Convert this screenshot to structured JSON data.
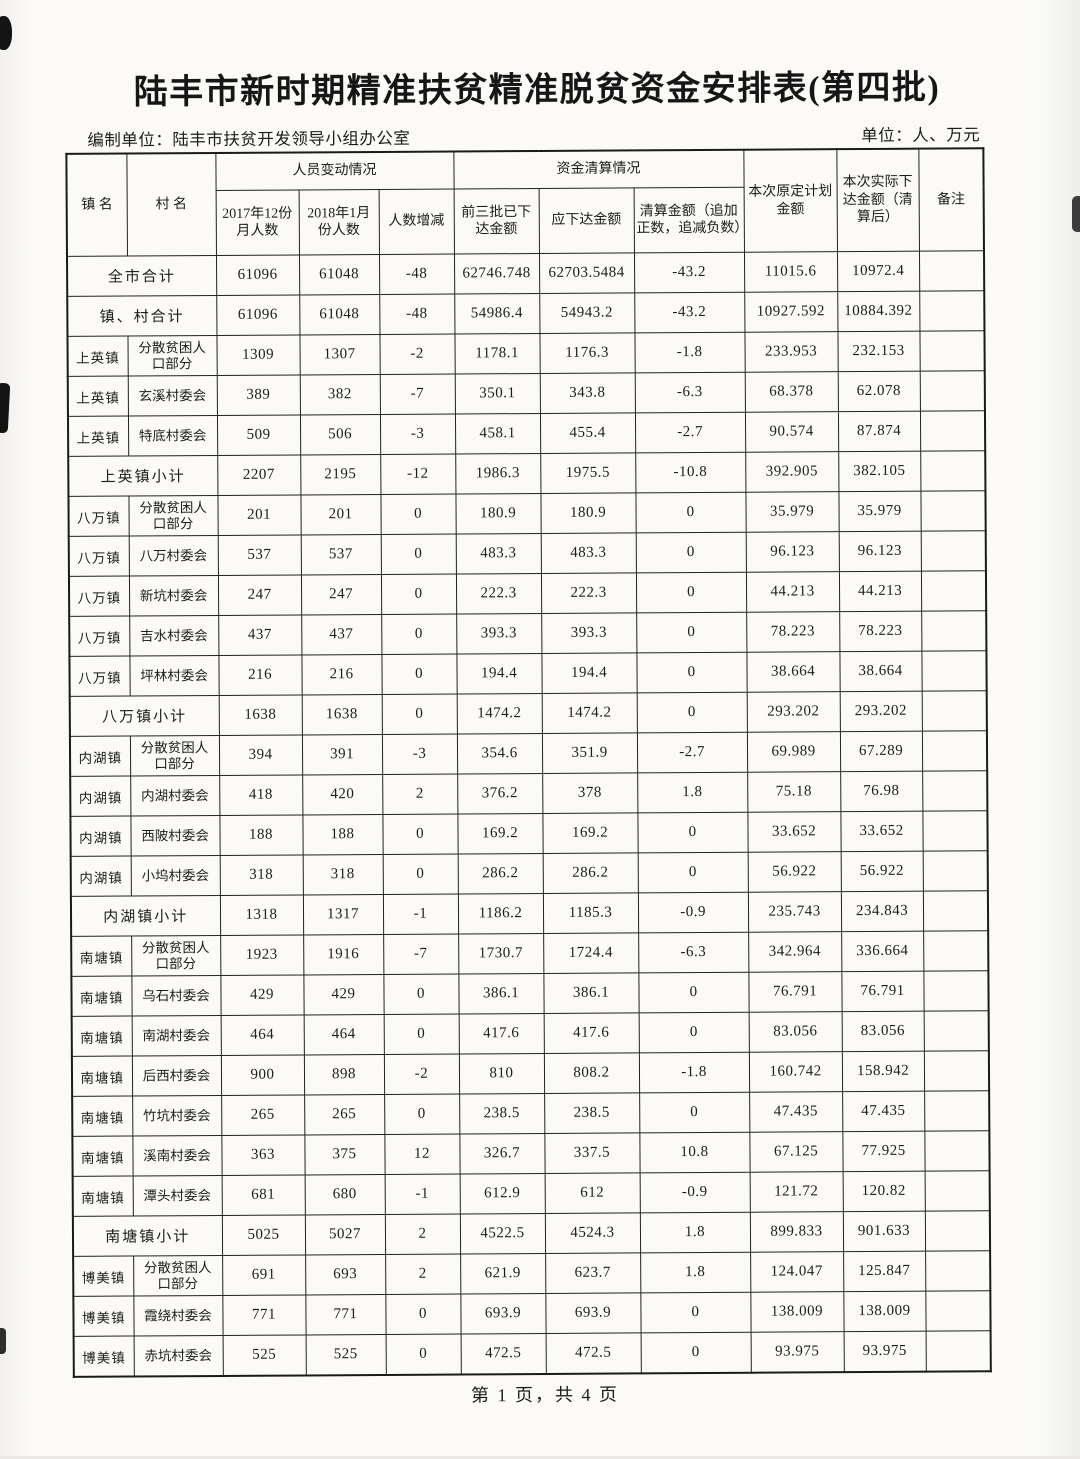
{
  "page": {
    "title": "陆丰市新时期精准扶贫精准脱贫资金安排表(第四批)",
    "prepared_by": "编制单位：陆丰市扶贫开发领导小组办公室",
    "unit_note": "单位：人、万元",
    "footer": "第 1 页，共 4 页"
  },
  "colors": {
    "ink": "#1c1c1c",
    "paper": "#fbfaf6"
  },
  "table": {
    "headers": {
      "town": "镇 名",
      "village": "村 名",
      "personnel_group": "人员变动情况",
      "funds_group": "资金清算情况",
      "col_2017": "2017年12份月人数",
      "col_2018": "2018年1月份人数",
      "col_change": "人数增减",
      "col_prev3": "前三批已下达金额",
      "col_due": "应下达金额",
      "col_settle": "清算金额（追加正数，追减负数）",
      "col_planned": "本次原定计划金额",
      "col_actual": "本次实际下达金额（清算后）",
      "col_remark": "备注"
    },
    "rows": [
      {
        "type": "total",
        "label": "全市合计",
        "values": [
          "61096",
          "61048",
          "-48",
          "62746.748",
          "62703.5484",
          "-43.2",
          "11015.6",
          "10972.4"
        ]
      },
      {
        "type": "total",
        "label": "镇、村合计",
        "values": [
          "61096",
          "61048",
          "-48",
          "54986.4",
          "54943.2",
          "-43.2",
          "10927.592",
          "10884.392"
        ]
      },
      {
        "type": "detail",
        "town": "上英镇",
        "village": "分散贫困人口部分",
        "values": [
          "1309",
          "1307",
          "-2",
          "1178.1",
          "1176.3",
          "-1.8",
          "233.953",
          "232.153"
        ]
      },
      {
        "type": "detail",
        "town": "上英镇",
        "village": "玄溪村委会",
        "values": [
          "389",
          "382",
          "-7",
          "350.1",
          "343.8",
          "-6.3",
          "68.378",
          "62.078"
        ]
      },
      {
        "type": "detail",
        "town": "上英镇",
        "village": "特底村委会",
        "values": [
          "509",
          "506",
          "-3",
          "458.1",
          "455.4",
          "-2.7",
          "90.574",
          "87.874"
        ]
      },
      {
        "type": "subtotal",
        "label": "上英镇小计",
        "values": [
          "2207",
          "2195",
          "-12",
          "1986.3",
          "1975.5",
          "-10.8",
          "392.905",
          "382.105"
        ]
      },
      {
        "type": "detail",
        "town": "八万镇",
        "village": "分散贫困人口部分",
        "values": [
          "201",
          "201",
          "0",
          "180.9",
          "180.9",
          "0",
          "35.979",
          "35.979"
        ]
      },
      {
        "type": "detail",
        "town": "八万镇",
        "village": "八万村委会",
        "values": [
          "537",
          "537",
          "0",
          "483.3",
          "483.3",
          "0",
          "96.123",
          "96.123"
        ]
      },
      {
        "type": "detail",
        "town": "八万镇",
        "village": "新坑村委会",
        "values": [
          "247",
          "247",
          "0",
          "222.3",
          "222.3",
          "0",
          "44.213",
          "44.213"
        ]
      },
      {
        "type": "detail",
        "town": "八万镇",
        "village": "吉水村委会",
        "values": [
          "437",
          "437",
          "0",
          "393.3",
          "393.3",
          "0",
          "78.223",
          "78.223"
        ]
      },
      {
        "type": "detail",
        "town": "八万镇",
        "village": "坪林村委会",
        "values": [
          "216",
          "216",
          "0",
          "194.4",
          "194.4",
          "0",
          "38.664",
          "38.664"
        ]
      },
      {
        "type": "subtotal",
        "label": "八万镇小计",
        "values": [
          "1638",
          "1638",
          "0",
          "1474.2",
          "1474.2",
          "0",
          "293.202",
          "293.202"
        ]
      },
      {
        "type": "detail",
        "town": "内湖镇",
        "village": "分散贫困人口部分",
        "values": [
          "394",
          "391",
          "-3",
          "354.6",
          "351.9",
          "-2.7",
          "69.989",
          "67.289"
        ]
      },
      {
        "type": "detail",
        "town": "内湖镇",
        "village": "内湖村委会",
        "values": [
          "418",
          "420",
          "2",
          "376.2",
          "378",
          "1.8",
          "75.18",
          "76.98"
        ]
      },
      {
        "type": "detail",
        "town": "内湖镇",
        "village": "西陂村委会",
        "values": [
          "188",
          "188",
          "0",
          "169.2",
          "169.2",
          "0",
          "33.652",
          "33.652"
        ]
      },
      {
        "type": "detail",
        "town": "内湖镇",
        "village": "小坞村委会",
        "values": [
          "318",
          "318",
          "0",
          "286.2",
          "286.2",
          "0",
          "56.922",
          "56.922"
        ]
      },
      {
        "type": "subtotal",
        "label": "内湖镇小计",
        "values": [
          "1318",
          "1317",
          "-1",
          "1186.2",
          "1185.3",
          "-0.9",
          "235.743",
          "234.843"
        ]
      },
      {
        "type": "detail",
        "town": "南塘镇",
        "village": "分散贫困人口部分",
        "values": [
          "1923",
          "1916",
          "-7",
          "1730.7",
          "1724.4",
          "-6.3",
          "342.964",
          "336.664"
        ]
      },
      {
        "type": "detail",
        "town": "南塘镇",
        "village": "乌石村委会",
        "values": [
          "429",
          "429",
          "0",
          "386.1",
          "386.1",
          "0",
          "76.791",
          "76.791"
        ]
      },
      {
        "type": "detail",
        "town": "南塘镇",
        "village": "南湖村委会",
        "values": [
          "464",
          "464",
          "0",
          "417.6",
          "417.6",
          "0",
          "83.056",
          "83.056"
        ]
      },
      {
        "type": "detail",
        "town": "南塘镇",
        "village": "后西村委会",
        "values": [
          "900",
          "898",
          "-2",
          "810",
          "808.2",
          "-1.8",
          "160.742",
          "158.942"
        ]
      },
      {
        "type": "detail",
        "town": "南塘镇",
        "village": "竹坑村委会",
        "values": [
          "265",
          "265",
          "0",
          "238.5",
          "238.5",
          "0",
          "47.435",
          "47.435"
        ]
      },
      {
        "type": "detail",
        "town": "南塘镇",
        "village": "溪南村委会",
        "values": [
          "363",
          "375",
          "12",
          "326.7",
          "337.5",
          "10.8",
          "67.125",
          "77.925"
        ]
      },
      {
        "type": "detail",
        "town": "南塘镇",
        "village": "潭头村委会",
        "values": [
          "681",
          "680",
          "-1",
          "612.9",
          "612",
          "-0.9",
          "121.72",
          "120.82"
        ]
      },
      {
        "type": "subtotal",
        "label": "南塘镇小计",
        "values": [
          "5025",
          "5027",
          "2",
          "4522.5",
          "4524.3",
          "1.8",
          "899.833",
          "901.633"
        ]
      },
      {
        "type": "detail",
        "town": "博美镇",
        "village": "分散贫困人口部分",
        "values": [
          "691",
          "693",
          "2",
          "621.9",
          "623.7",
          "1.8",
          "124.047",
          "125.847"
        ]
      },
      {
        "type": "detail",
        "town": "博美镇",
        "village": "霞绕村委会",
        "values": [
          "771",
          "771",
          "0",
          "693.9",
          "693.9",
          "0",
          "138.009",
          "138.009"
        ]
      },
      {
        "type": "detail",
        "town": "博美镇",
        "village": "赤坑村委会",
        "values": [
          "525",
          "525",
          "0",
          "472.5",
          "472.5",
          "0",
          "93.975",
          "93.975"
        ]
      }
    ]
  }
}
